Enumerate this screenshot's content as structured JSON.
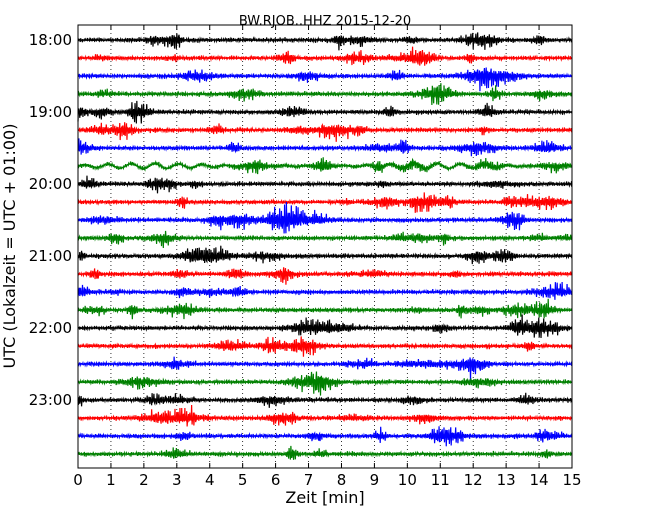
{
  "chart_data": {
    "type": "line",
    "title": "BW.RJOB..HHZ 2015-12-20",
    "xlabel": "Zeit  [min]",
    "ylabel": "UTC (Lokalzeit = UTC + 01:00)",
    "xlim": [
      0,
      15
    ],
    "x_ticks": [
      "0",
      "1",
      "2",
      "3",
      "4",
      "5",
      "6",
      "7",
      "8",
      "9",
      "10",
      "11",
      "12",
      "13",
      "14",
      "15"
    ],
    "y_ticks": [
      "18:00",
      "19:00",
      "20:00",
      "21:00",
      "22:00",
      "23:00"
    ],
    "grid": "vertical dotted",
    "trace_start": "18:00",
    "trace_interval_min": 15,
    "trace_count": 24,
    "colors": [
      "#000000",
      "#ff0000",
      "#0000ff",
      "#008000"
    ]
  }
}
